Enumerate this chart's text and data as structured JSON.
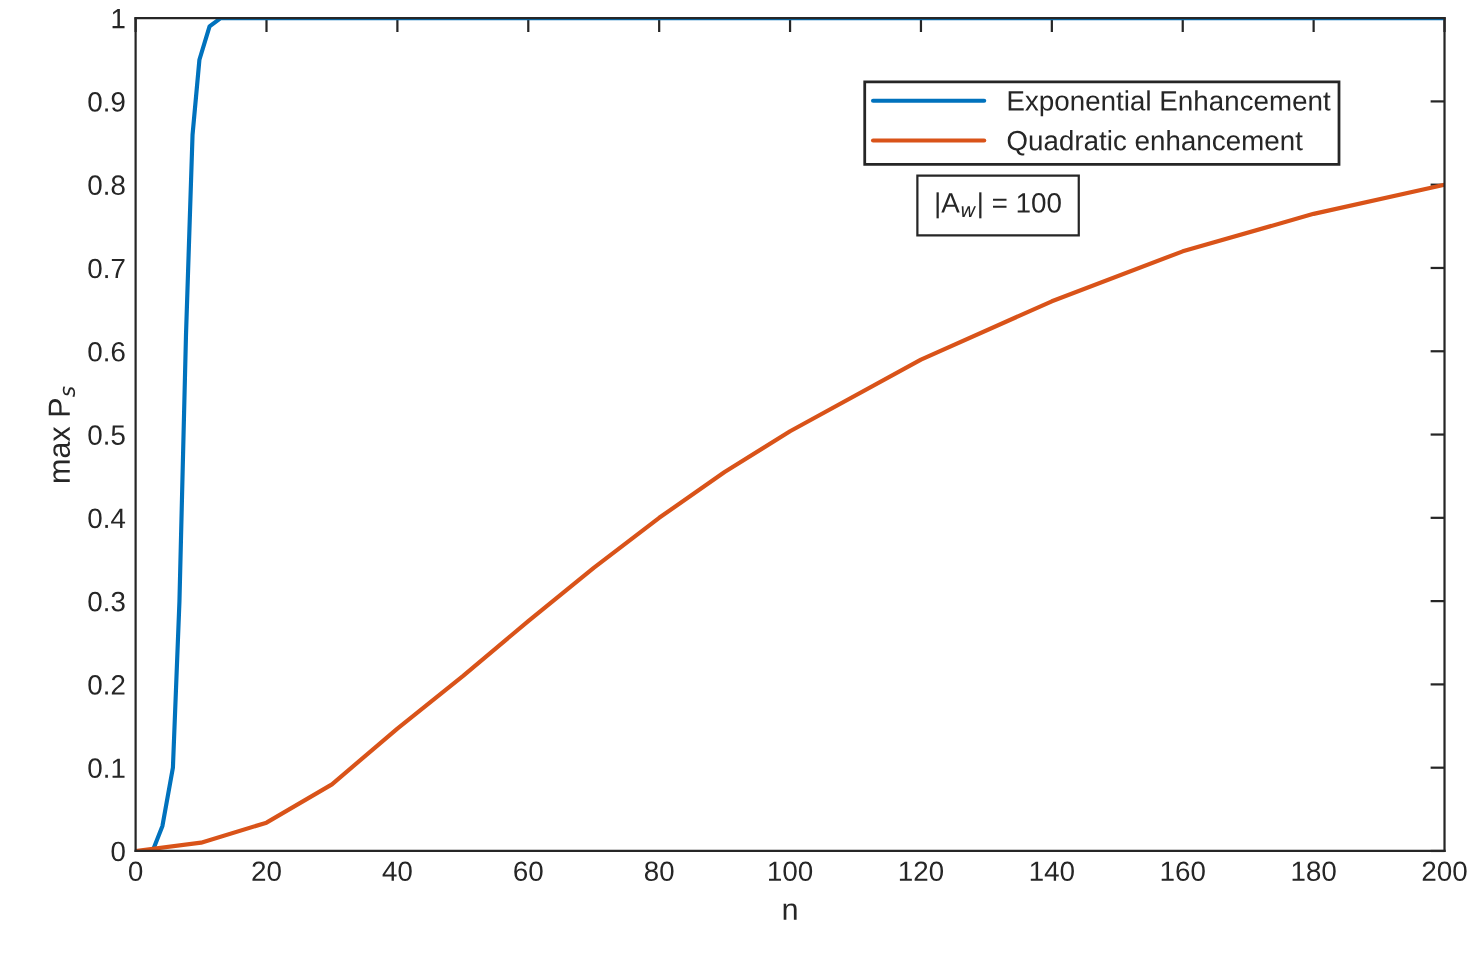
{
  "chart_data": {
    "type": "line",
    "xlabel": "n",
    "ylabel": "max P$_{s}$",
    "xlim": [
      0,
      200
    ],
    "ylim": [
      0,
      1
    ],
    "xticks": [
      0,
      20,
      40,
      60,
      80,
      100,
      120,
      140,
      160,
      180,
      200
    ],
    "yticks": [
      0,
      0.1,
      0.2,
      0.3,
      0.4,
      0.5,
      0.6,
      0.7,
      0.8,
      0.9,
      1
    ],
    "grid": false,
    "legend": "top right",
    "marker": "none",
    "line_style": "solid",
    "annotations": [
      "|A$_{w}$| = 100"
    ],
    "series": [
      {
        "name": "Exponential Enhancement",
        "color": "#0072bd",
        "x": [
          0,
          2.6,
          4.1,
          5.7,
          6.7,
          7.7,
          8.7,
          9.75,
          11.3,
          13,
          50,
          100,
          150,
          200
        ],
        "values": [
          0,
          0,
          0.03,
          0.1,
          0.3,
          0.62,
          0.86,
          0.95,
          0.99,
          1,
          1,
          1,
          1,
          1
        ]
      },
      {
        "name": "Quadratic enhancement",
        "color": "#d95319",
        "x": [
          0,
          10,
          20,
          30,
          40,
          50,
          60,
          70,
          80,
          90,
          100,
          120,
          140,
          160,
          180,
          200
        ],
        "values": [
          0,
          0.01,
          0.034,
          0.08,
          0.147,
          0.21,
          0.276,
          0.34,
          0.4,
          0.455,
          0.504,
          0.59,
          0.66,
          0.72,
          0.765,
          0.8
        ]
      }
    ]
  }
}
